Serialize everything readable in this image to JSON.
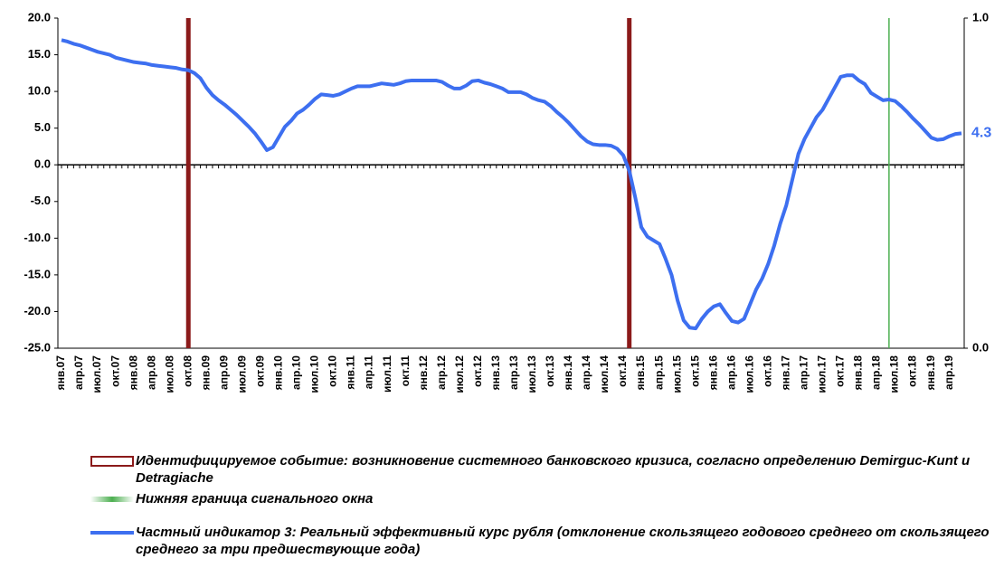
{
  "chart_data": {
    "type": "line",
    "categories": [
      "янв.07",
      null,
      null,
      "апр.07",
      null,
      null,
      "июл.07",
      null,
      null,
      "окт.07",
      null,
      null,
      "янв.08",
      null,
      null,
      "апр.08",
      null,
      null,
      "июл.08",
      null,
      null,
      "окт.08",
      null,
      null,
      "янв.09",
      null,
      null,
      "апр.09",
      null,
      null,
      "июл.09",
      null,
      null,
      "окт.09",
      null,
      null,
      "янв.10",
      null,
      null,
      "апр.10",
      null,
      null,
      "июл.10",
      null,
      null,
      "окт.10",
      null,
      null,
      "янв.11",
      null,
      null,
      "апр.11",
      null,
      null,
      "июл.11",
      null,
      null,
      "окт.11",
      null,
      null,
      "янв.12",
      null,
      null,
      "апр.12",
      null,
      null,
      "июл.12",
      null,
      null,
      "окт.12",
      null,
      null,
      "янв.13",
      null,
      null,
      "апр.13",
      null,
      null,
      "июл.13",
      null,
      null,
      "окт.13",
      null,
      null,
      "янв.14",
      null,
      null,
      "апр.14",
      null,
      null,
      "июл.14",
      null,
      null,
      "окт.14",
      null,
      null,
      "янв.15",
      null,
      null,
      "апр.15",
      null,
      null,
      "июл.15",
      null,
      null,
      "окт.15",
      null,
      null,
      "янв.16",
      null,
      null,
      "апр.16",
      null,
      null,
      "июл.16",
      null,
      null,
      "окт.16",
      null,
      null,
      "янв.17",
      null,
      null,
      "апр.17",
      null,
      null,
      "июл.17",
      null,
      null,
      "окт.17",
      null,
      null,
      "янв.18",
      null,
      null,
      "апр.18",
      null,
      null,
      "июл.18",
      null,
      null,
      "окт.18",
      null,
      null,
      "янв.19",
      null,
      null,
      "апр.19",
      null,
      null
    ],
    "series": [
      {
        "name": "Идентифицируемое событие: возникновение системного банковского кризиса, согласно определению Demirguc-Kunt и Detragiache",
        "type": "bar",
        "axis": "y2",
        "color": "#8b1a1a",
        "x": [
          21,
          94
        ],
        "values": [
          1,
          1
        ]
      },
      {
        "name": "Нижняя граница сигнального окна",
        "type": "bar",
        "axis": "y2",
        "color": "#4caf50",
        "x": [
          137
        ],
        "values": [
          1
        ]
      },
      {
        "name": "Частный индикатор 3: Реальный эффективный курс рубля (отклонение скользящего годового среднего от скользящего среднего за три предшествующие года)",
        "type": "line",
        "color": "#3d6ff0",
        "label_last": true,
        "values": [
          17.0,
          16.8,
          16.5,
          16.3,
          16.0,
          15.7,
          15.4,
          15.2,
          15.0,
          14.6,
          14.4,
          14.2,
          14.0,
          13.9,
          13.8,
          13.6,
          13.5,
          13.4,
          13.3,
          13.2,
          13.0,
          12.9,
          12.5,
          11.8,
          10.5,
          9.5,
          8.8,
          8.2,
          7.5,
          6.8,
          6.0,
          5.2,
          4.3,
          3.2,
          2.0,
          2.4,
          3.8,
          5.2,
          6.0,
          7.0,
          7.5,
          8.2,
          9.0,
          9.6,
          9.5,
          9.4,
          9.6,
          10.0,
          10.4,
          10.7,
          10.7,
          10.7,
          10.9,
          11.1,
          11.0,
          10.9,
          11.1,
          11.4,
          11.5,
          11.5,
          11.5,
          11.5,
          11.5,
          11.3,
          10.8,
          10.4,
          10.4,
          10.8,
          11.4,
          11.5,
          11.2,
          11.0,
          10.7,
          10.4,
          9.9,
          9.9,
          9.9,
          9.6,
          9.1,
          8.8,
          8.6,
          8.0,
          7.2,
          6.5,
          5.7,
          4.8,
          3.9,
          3.2,
          2.8,
          2.7,
          2.7,
          2.6,
          2.2,
          1.3,
          -0.8,
          -4.5,
          -8.5,
          -9.8,
          -10.3,
          -10.8,
          -12.8,
          -15.0,
          -18.5,
          -21.2,
          -22.2,
          -22.3,
          -21.0,
          -20.0,
          -19.3,
          -19.0,
          -20.2,
          -21.3,
          -21.5,
          -21.0,
          -19.0,
          -17.0,
          -15.5,
          -13.5,
          -11.0,
          -8.0,
          -5.5,
          -2.0,
          1.5,
          3.5,
          5.0,
          6.5,
          7.5,
          9.0,
          10.5,
          12.0,
          12.2,
          12.2,
          11.5,
          11.0,
          9.8,
          9.3,
          8.8,
          8.9,
          8.7,
          8.0,
          7.2,
          6.3,
          5.5,
          4.6,
          3.7,
          3.4,
          3.5,
          3.9,
          4.2,
          4.3
        ]
      }
    ],
    "ylim": [
      -25,
      20
    ],
    "yticks": [
      {
        "value": -25,
        "label": "-25.0"
      },
      {
        "value": -20,
        "label": "-20.0"
      },
      {
        "value": -15,
        "label": "-15.0"
      },
      {
        "value": -10,
        "label": "-10.0"
      },
      {
        "value": -5,
        "label": "-5.0"
      },
      {
        "value": 0,
        "label": "0.0"
      },
      {
        "value": 5,
        "label": "5.0"
      },
      {
        "value": 10,
        "label": "10.0"
      },
      {
        "value": 15,
        "label": "15.0"
      },
      {
        "value": 20,
        "label": "20.0"
      }
    ],
    "y2lim": [
      0,
      1
    ],
    "y2ticks": [
      {
        "value": 0,
        "label": "0.0"
      },
      {
        "value": 1,
        "label": "1.0"
      }
    ]
  }
}
